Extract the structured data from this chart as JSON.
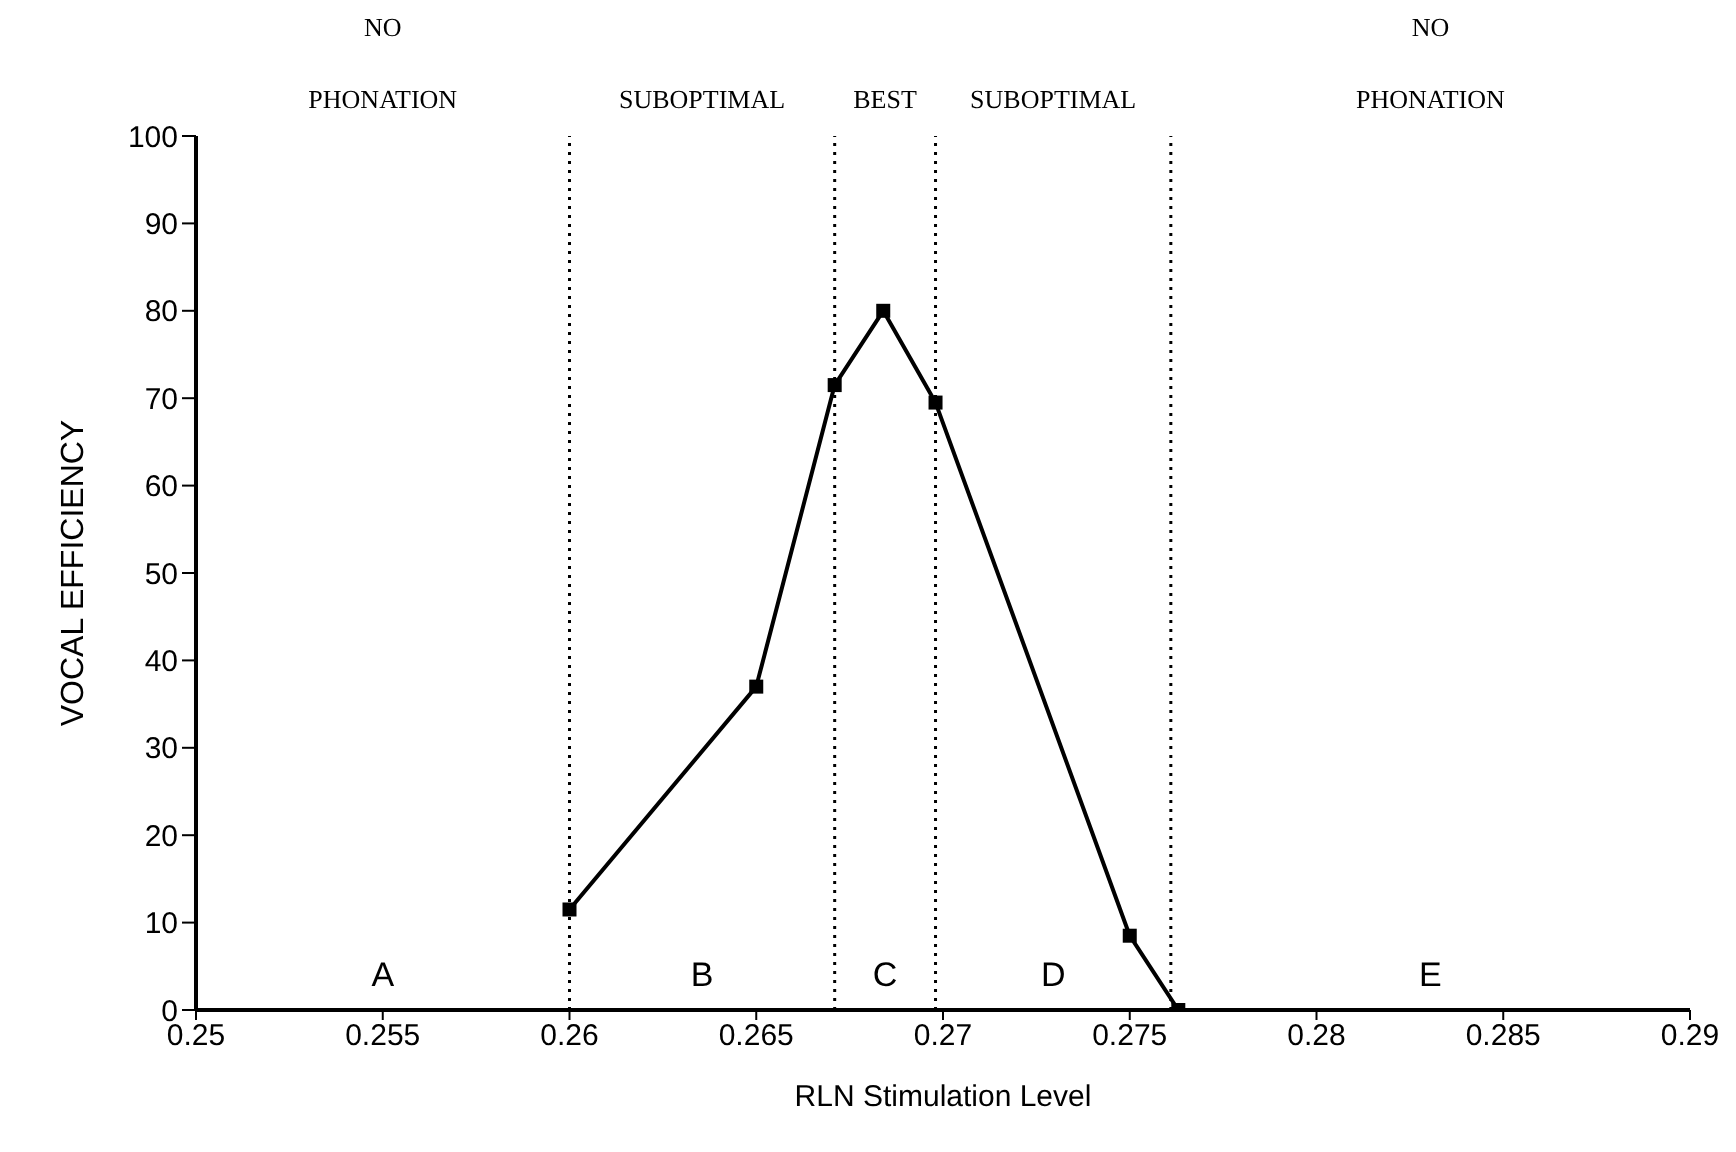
{
  "chart_data": {
    "type": "line",
    "xlabel": "RLN Stimulation Level",
    "ylabel": "VOCAL EFFICIENCY",
    "x": [
      0.26,
      0.265,
      0.2671,
      0.2684,
      0.2698,
      0.275,
      0.2763
    ],
    "series": [
      {
        "color": "#000000",
        "values": [
          11.5,
          37,
          71.5,
          80,
          69.5,
          8.5,
          0
        ]
      }
    ],
    "marker": "square",
    "line_style": "solid",
    "grid": false,
    "legend": false,
    "xlim": [
      0.25,
      0.29
    ],
    "xticks": [
      0.25,
      0.255,
      0.26,
      0.265,
      0.27,
      0.275,
      0.28,
      0.285,
      0.29
    ],
    "ylim": [
      0,
      100
    ],
    "yticks": [
      0,
      10,
      20,
      30,
      40,
      50,
      60,
      70,
      80,
      90,
      100
    ],
    "ref_lines": [
      {
        "axis": "x",
        "value": 0.26,
        "color": "#000000",
        "line_style": "dotted"
      },
      {
        "axis": "x",
        "value": 0.2671,
        "color": "#000000",
        "line_style": "dotted"
      },
      {
        "axis": "x",
        "value": 0.2698,
        "color": "#000000",
        "line_style": "dotted"
      },
      {
        "axis": "x",
        "value": 0.2761,
        "color": "#000000",
        "line_style": "dotted"
      }
    ],
    "annotations": [
      "NO PHONATION",
      "SUBOPTIMAL",
      "BEST",
      "SUBOPTIMAL",
      "NO PHONATION",
      "A",
      "B",
      "C",
      "D",
      "E"
    ]
  }
}
